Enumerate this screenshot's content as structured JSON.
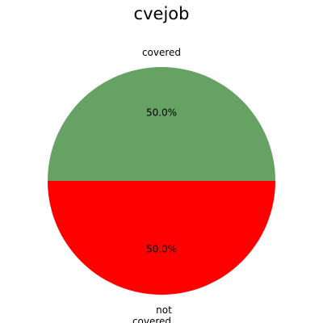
{
  "chart_data": {
    "type": "pie",
    "title": "cvejob",
    "slices": [
      {
        "label": "covered",
        "value": 50.0,
        "percent_label": "50.0%",
        "color": "#65a264"
      },
      {
        "label": "not covered",
        "value": 50.0,
        "percent_label": "50.0%",
        "color": "#ff0000"
      }
    ],
    "start_angle_deg": 0,
    "direction": "counterclockwise"
  }
}
